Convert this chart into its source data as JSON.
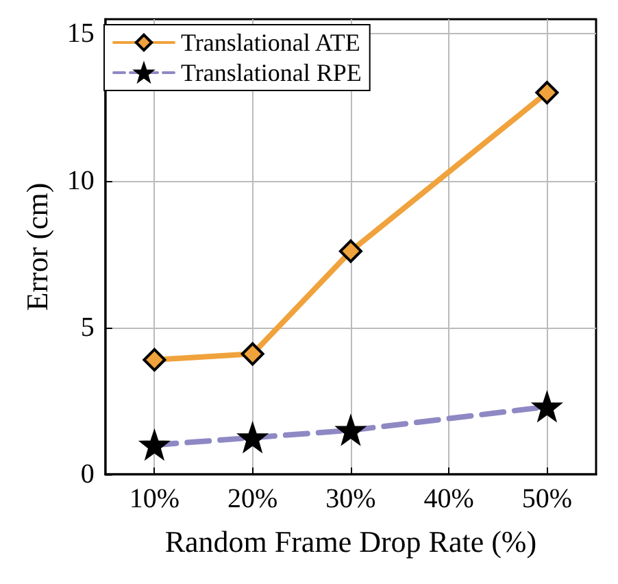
{
  "chart_data": {
    "type": "line",
    "xlabel": "Random Frame Drop Rate (%)",
    "ylabel": "Error (cm)",
    "xlim": [
      5,
      55
    ],
    "xticks": [
      {
        "value": 10,
        "label": "10%"
      },
      {
        "value": 20,
        "label": "20%"
      },
      {
        "value": 30,
        "label": "30%"
      },
      {
        "value": 40,
        "label": "40%"
      },
      {
        "value": 50,
        "label": "50%"
      }
    ],
    "ylim": [
      0,
      15.5
    ],
    "yticks": [
      0,
      5,
      10,
      15
    ],
    "grid": true,
    "legend": "top left",
    "series": [
      {
        "name": "Translational ATE",
        "color": "#f0a23c",
        "x": [
          10,
          20,
          30,
          50
        ],
        "values": [
          3.9,
          4.1,
          7.6,
          13.0
        ],
        "marker": "diamond",
        "line_style": "solid"
      },
      {
        "name": "Translational RPE",
        "color": "#8e88c4",
        "x": [
          10,
          20,
          30,
          50
        ],
        "values": [
          1.0,
          1.25,
          1.5,
          2.3
        ],
        "marker": "star",
        "line_style": "dashed"
      }
    ]
  }
}
